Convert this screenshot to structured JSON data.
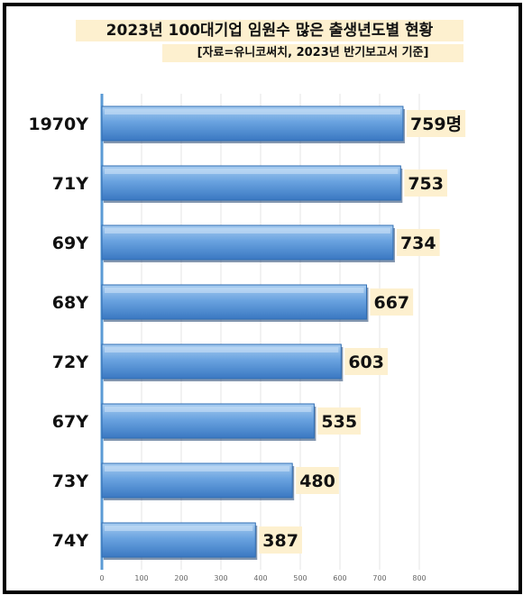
{
  "chart_data": {
    "type": "bar",
    "orientation": "horizontal",
    "title": "2023년 100대기업 임원수 많은 출생년도별 현황",
    "subtitle": "[자료=유니코써치,  2023년 반기보고서 기준]",
    "categories": [
      "1970Y",
      "71Y",
      "69Y",
      "68Y",
      "72Y",
      "67Y",
      "73Y",
      "74Y"
    ],
    "values": [
      759,
      753,
      734,
      667,
      603,
      535,
      480,
      387
    ],
    "value_labels": [
      "759명",
      "753",
      "734",
      "667",
      "603",
      "535",
      "480",
      "387"
    ],
    "xlim": [
      0,
      800
    ],
    "x_ticks": [
      0,
      100,
      200,
      300,
      400,
      500,
      600,
      700,
      800
    ],
    "grid": true,
    "colors": {
      "bar": "#4f8fd6",
      "bar_light": "#9cc4ee",
      "bar_dark": "#2f6db3",
      "label_bg": "#fdf0cf",
      "axis": "#5b9bd5"
    }
  }
}
